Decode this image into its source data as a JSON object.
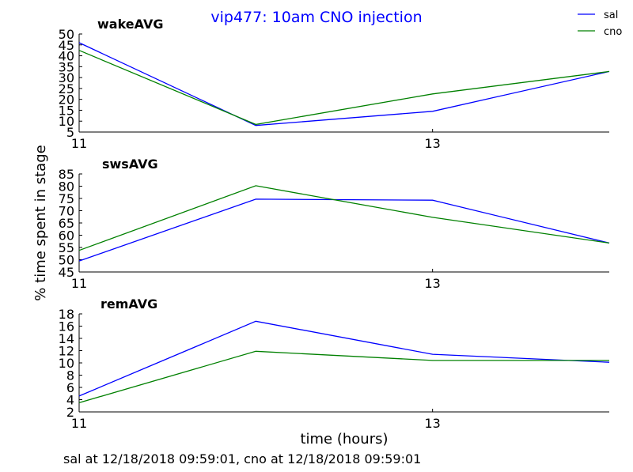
{
  "title": "vip477: 10am CNO injection",
  "ylabel": "% time spent in stage",
  "xlabel": "time (hours)",
  "footer": "sal at 12/18/2018 09:59:01, cno at 12/18/2018 09:59:01",
  "legend": [
    {
      "label": "sal",
      "color": "#0000ff"
    },
    {
      "label": "cno",
      "color": "#008000"
    }
  ],
  "chart_data": [
    {
      "type": "line",
      "title": "wakeAVG",
      "x": [
        11,
        12,
        13,
        14
      ],
      "xlim": [
        11,
        14
      ],
      "xticks": [
        11,
        13
      ],
      "ylim": [
        5,
        50
      ],
      "yticks": [
        5,
        10,
        15,
        20,
        25,
        30,
        35,
        40,
        45,
        50
      ],
      "series": [
        {
          "name": "sal",
          "color": "#0000ff",
          "values": [
            46.0,
            8.0,
            14.5,
            32.8
          ]
        },
        {
          "name": "cno",
          "color": "#008000",
          "values": [
            42.5,
            8.5,
            22.5,
            32.8
          ]
        }
      ]
    },
    {
      "type": "line",
      "title": "swsAVG",
      "x": [
        11,
        12,
        13,
        14
      ],
      "xlim": [
        11,
        14
      ],
      "xticks": [
        11,
        13
      ],
      "ylim": [
        45,
        85
      ],
      "yticks": [
        45,
        50,
        55,
        60,
        65,
        70,
        75,
        80,
        85
      ],
      "series": [
        {
          "name": "sal",
          "color": "#0000ff",
          "values": [
            49.5,
            74.7,
            74.3,
            56.8
          ]
        },
        {
          "name": "cno",
          "color": "#008000",
          "values": [
            53.8,
            80.2,
            67.3,
            56.8
          ]
        }
      ]
    },
    {
      "type": "line",
      "title": "remAVG",
      "x": [
        11,
        12,
        13,
        14
      ],
      "xlim": [
        11,
        14
      ],
      "xticks": [
        11,
        13
      ],
      "ylim": [
        2,
        18
      ],
      "yticks": [
        2,
        4,
        6,
        8,
        10,
        12,
        14,
        16,
        18
      ],
      "series": [
        {
          "name": "sal",
          "color": "#0000ff",
          "values": [
            4.6,
            16.8,
            11.4,
            10.1
          ]
        },
        {
          "name": "cno",
          "color": "#008000",
          "values": [
            3.5,
            11.9,
            10.4,
            10.4
          ]
        }
      ]
    }
  ]
}
